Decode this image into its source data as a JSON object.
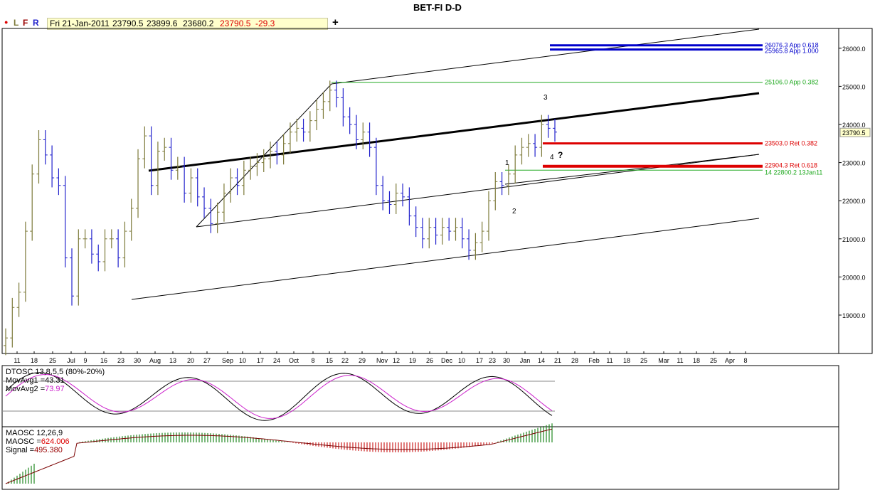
{
  "title": "BET-FI D-D",
  "toolbar": {
    "dot": "●",
    "l": "L",
    "f": "F",
    "r": "R",
    "add": "+"
  },
  "info": {
    "date": "Fri 21-Jan-2011",
    "open": "23790.5",
    "high": "23899.6",
    "low": "23680.2",
    "close": "23790.5",
    "change": "-29.3"
  },
  "colors": {
    "up_bar": "#7d7a3a",
    "down_bar": "#2222cc",
    "fib_blue": "#0000cc",
    "fib_red": "#dd0000",
    "fib_green": "#22aa22",
    "dtosc": "#000000",
    "movavg2": "#cc22cc",
    "maosc_hist": "#cc2222",
    "signal": "#7a0000"
  },
  "chart_data": [
    {
      "type": "bar",
      "title": "BET-FI D-D",
      "ylim": [
        18200,
        26700
      ],
      "y_ticks": [
        "19000.0",
        "20000.0",
        "21000.0",
        "22000.0",
        "23000.0",
        "24000.0",
        "25000.0",
        "26000.0"
      ],
      "last_price": "23790.5",
      "x_ticks": [
        "11",
        "18",
        "25",
        "Jul",
        "9",
        "16",
        "23",
        "30",
        "Aug",
        "13",
        "20",
        "27",
        "Sep",
        "10",
        "17",
        "24",
        "Oct",
        "8",
        "15",
        "22",
        "29",
        "Nov",
        "12",
        "19",
        "26",
        "Dec",
        "10",
        "17",
        "23",
        "30",
        "Jan",
        "14",
        "21",
        "28",
        "Feb",
        "11",
        "18",
        "25",
        "Mar",
        "11",
        "18",
        "25",
        "Apr",
        "8"
      ],
      "series": [
        {
          "values": [
            18400,
            19200,
            19600,
            21200,
            22700,
            23600,
            23200,
            22600,
            22400,
            20500,
            19500,
            21000,
            21000,
            20600,
            20400,
            21000,
            21000,
            20500,
            21200,
            21800,
            23100,
            23700,
            22400,
            23300,
            23400,
            22800,
            22900,
            22200,
            22600,
            22100,
            21800,
            21400,
            21700,
            22200,
            22600,
            22400,
            22800,
            22900,
            23000,
            23100,
            23300,
            23200,
            23500,
            23800,
            23900,
            23800,
            24100,
            24400,
            24600,
            24900,
            24700,
            24200,
            24000,
            23600,
            23800,
            23400,
            22400,
            22000,
            21900,
            22200,
            22100,
            21600,
            21300,
            21000,
            21300,
            21100,
            21300,
            21200,
            21300,
            21000,
            20700,
            20900,
            21200,
            22000,
            22500,
            22400,
            22700,
            23200,
            23400,
            23500,
            23400,
            24000,
            23900,
            23800
          ]
        }
      ],
      "fib_levels": [
        {
          "label": "26076.3 App 0.618",
          "value": 26076.3
        },
        {
          "label": "25965.8 App 1.000",
          "value": 25965.8
        },
        {
          "label": "25106.0 App 0.382",
          "value": 25106
        },
        {
          "label": "23503.0 Ret 0.382",
          "value": 23503
        },
        {
          "label": "22904.3 Ret 0.618",
          "value": 22904.3
        },
        {
          "label": "14 22800.2 13Jan11",
          "value": 22800.2
        }
      ],
      "annotations": [
        "1",
        "2",
        "3",
        "4",
        "?"
      ]
    },
    {
      "type": "line",
      "title": "DTOSC 13,8,5,5 (80%-20%)",
      "series": [
        {
          "name": "MovAvg1",
          "last_value": "43.31"
        },
        {
          "name": "MovAvg2",
          "last_value": "73.97"
        }
      ],
      "levels": [
        80,
        20
      ]
    },
    {
      "type": "bar",
      "title": "MAOSC 12,26,9",
      "series": [
        {
          "name": "MAOSC",
          "last_value": "624.006"
        },
        {
          "name": "Signal",
          "last_value": "495.380"
        }
      ]
    }
  ]
}
